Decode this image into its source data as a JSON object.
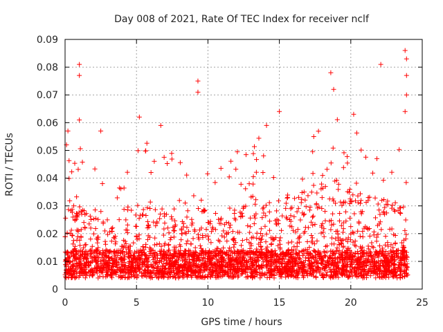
{
  "chart_data": {
    "type": "scatter",
    "title": "Day 008 of 2021, Rate Of TEC Index for receiver nclf",
    "xlabel": "GPS time / hours",
    "ylabel": "ROTI / TECUs",
    "xlim": [
      0,
      25
    ],
    "ylim": [
      0,
      0.09
    ],
    "x_ticks": [
      "0",
      "5",
      "10",
      "15",
      "20",
      "25"
    ],
    "y_ticks": [
      "0",
      "0.01",
      "0.02",
      "0.03",
      "0.04",
      "0.05",
      "0.06",
      "0.07",
      "0.08",
      "0.09"
    ],
    "grid": true,
    "marker": "+",
    "series": [
      {
        "name": "ROTI",
        "color": "#ff0000",
        "x_range": [
          0,
          24
        ],
        "baseline_range": [
          0.004,
          0.014
        ],
        "notable_peaks": [
          {
            "x": 0.1,
            "y": 0.052
          },
          {
            "x": 0.2,
            "y": 0.057
          },
          {
            "x": 1.0,
            "y": 0.081
          },
          {
            "x": 1.0,
            "y": 0.077
          },
          {
            "x": 1.0,
            "y": 0.061
          },
          {
            "x": 2.5,
            "y": 0.057
          },
          {
            "x": 5.2,
            "y": 0.062
          },
          {
            "x": 6.7,
            "y": 0.059
          },
          {
            "x": 9.3,
            "y": 0.075
          },
          {
            "x": 9.3,
            "y": 0.071
          },
          {
            "x": 14.1,
            "y": 0.059
          },
          {
            "x": 15.0,
            "y": 0.064
          },
          {
            "x": 18.6,
            "y": 0.078
          },
          {
            "x": 18.8,
            "y": 0.072
          },
          {
            "x": 20.2,
            "y": 0.063
          },
          {
            "x": 22.1,
            "y": 0.081
          },
          {
            "x": 23.8,
            "y": 0.086
          },
          {
            "x": 23.9,
            "y": 0.083
          },
          {
            "x": 23.9,
            "y": 0.077
          },
          {
            "x": 23.9,
            "y": 0.07
          },
          {
            "x": 23.8,
            "y": 0.064
          }
        ]
      }
    ]
  }
}
